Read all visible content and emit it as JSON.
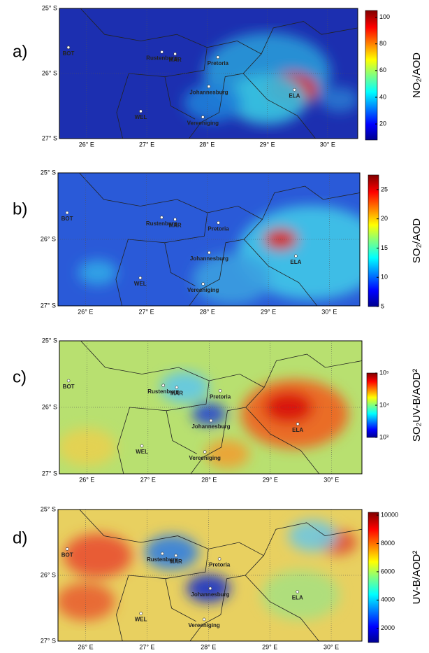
{
  "map": {
    "lonlim": [
      25.55,
      30.5
    ],
    "latlim": [
      25,
      27
    ],
    "lonticks": [
      {
        "value": 26,
        "label": "26° E"
      },
      {
        "value": 27,
        "label": "27° E"
      },
      {
        "value": 28,
        "label": "28° E"
      },
      {
        "value": 29,
        "label": "29° E"
      },
      {
        "value": 30,
        "label": "30° E"
      }
    ],
    "latticks": [
      {
        "value": 25,
        "label": "25° S"
      },
      {
        "value": 26,
        "label": "26° S"
      },
      {
        "value": 27,
        "label": "27° S"
      }
    ],
    "places": [
      {
        "name": "BOT",
        "lon": 25.7,
        "lat": 25.6
      },
      {
        "name": "Rustenburg",
        "lon": 27.25,
        "lat": 25.67
      },
      {
        "name": "MAR",
        "lon": 27.47,
        "lat": 25.7
      },
      {
        "name": "Pretoria",
        "lon": 28.18,
        "lat": 25.75
      },
      {
        "name": "Johannesburg",
        "lon": 28.03,
        "lat": 26.2
      },
      {
        "name": "Vereeniging",
        "lon": 27.93,
        "lat": 26.67
      },
      {
        "name": "WEL",
        "lon": 26.9,
        "lat": 26.58
      },
      {
        "name": "ELA",
        "lon": 29.45,
        "lat": 26.25
      }
    ]
  },
  "panels": [
    {
      "label": "a)",
      "colorbar_label": "NO₂/AOD",
      "clim": [
        8,
        105
      ],
      "log": false,
      "cticks": [
        20,
        40,
        60,
        80,
        100
      ]
    },
    {
      "label": "b)",
      "colorbar_label": "SO₂/AOD",
      "clim": [
        5,
        27.5
      ],
      "log": false,
      "cticks": [
        5,
        10,
        15,
        20,
        25
      ]
    },
    {
      "label": "c)",
      "colorbar_label": "SO₂UV-B/AOD²",
      "clim": [
        1000,
        100000
      ],
      "log": true,
      "cticks": [
        {
          "value": 1000,
          "label": "10³"
        },
        {
          "value": 10000,
          "label": "10⁴"
        },
        {
          "value": 100000,
          "label": "10⁵"
        }
      ]
    },
    {
      "label": "d)",
      "colorbar_label": "UV-B/AOD²",
      "clim": [
        1000,
        10200
      ],
      "log": false,
      "cticks": [
        2000,
        4000,
        6000,
        8000,
        10000
      ]
    }
  ]
}
